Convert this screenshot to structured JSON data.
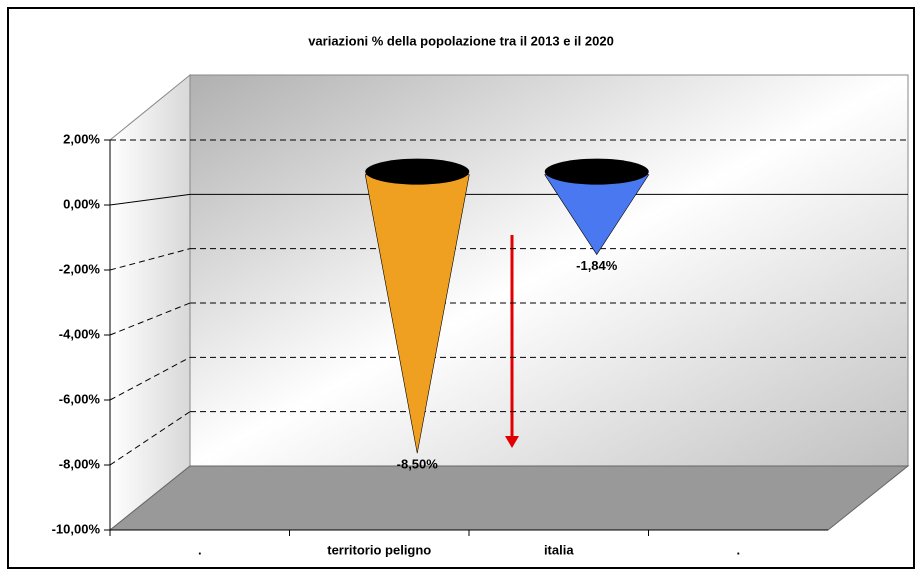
{
  "chart_data": {
    "type": "cone",
    "title": "variazioni % della popolazione tra il 2013 e il 2020",
    "categories": [
      ".",
      "territorio peligno",
      "italia",
      "."
    ],
    "values": [
      null,
      -8.5,
      -1.84,
      null
    ],
    "value_labels": [
      null,
      "-8,50%",
      "-1,84%",
      null
    ],
    "colors": [
      null,
      "#f0a020",
      "#4a78f0",
      null
    ],
    "ylim": [
      -10,
      2
    ],
    "yticks": [
      {
        "value": -10,
        "label": "-10,00%"
      },
      {
        "value": -8,
        "label": "-8,00%"
      },
      {
        "value": -6,
        "label": "-6,00%"
      },
      {
        "value": -4,
        "label": "-4,00%"
      },
      {
        "value": -2,
        "label": "-2,00%"
      },
      {
        "value": 0,
        "label": "0,00%"
      },
      {
        "value": 2,
        "label": "2,00%"
      }
    ],
    "grid": true
  }
}
